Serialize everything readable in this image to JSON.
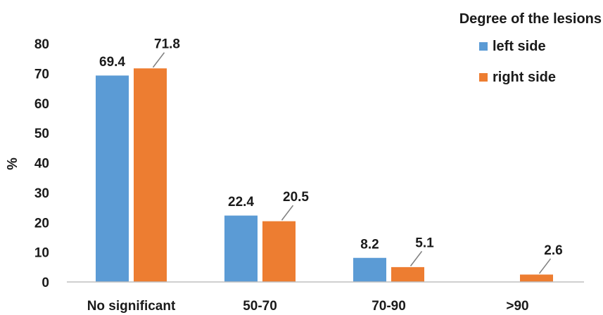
{
  "chart_data": {
    "type": "bar",
    "categories": [
      "No significant",
      "50-70",
      "70-90",
      ">90"
    ],
    "series": [
      {
        "name": "left side",
        "values": [
          69.4,
          22.4,
          8.2,
          null
        ],
        "color": "#5B9BD5"
      },
      {
        "name": "right side",
        "values": [
          71.8,
          20.5,
          5.1,
          2.6
        ],
        "color": "#ED7D31"
      }
    ],
    "data_labels": [
      [
        "69.4",
        "22.4",
        "8.2",
        ""
      ],
      [
        "71.8",
        "20.5",
        "5.1",
        "2.6"
      ]
    ],
    "ylabel": "%",
    "ylim": [
      0,
      80
    ],
    "yticks": [
      0,
      10,
      20,
      30,
      40,
      50,
      60,
      70,
      80
    ],
    "grid": false,
    "legend": {
      "title": "Degree of the lesions",
      "position": "top-right"
    }
  }
}
